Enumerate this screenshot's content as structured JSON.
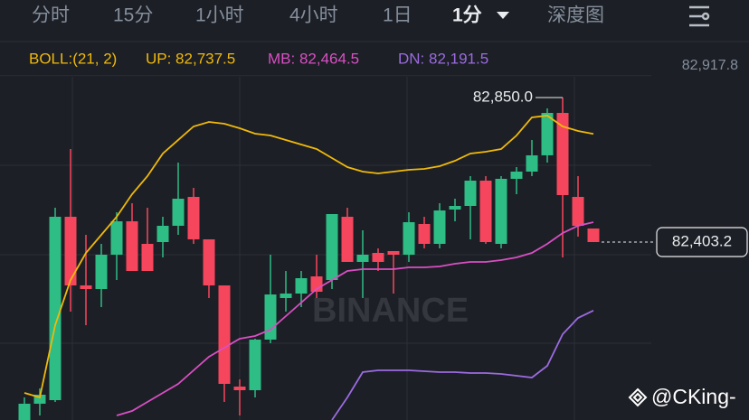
{
  "tabs": [
    "分时",
    "15分",
    "1小时",
    "4小时",
    "1日",
    "1分",
    "深度图"
  ],
  "active_tab": 5,
  "watermark": "BINANCE",
  "credit": "@CKing-",
  "chart_data": {
    "type": "candlestick",
    "indicator": "BOLL:(21, 2)",
    "ylim": [
      81853.1,
      82914.2
    ],
    "yticks": [
      {
        "value": 82917.8,
        "label": "82,917.8"
      }
    ],
    "up_color": "#2ebd85",
    "down_color": "#f6465d",
    "open": [
      81853.1,
      81903.4,
      81914.5,
      82481.4,
      82269.2,
      82258.0,
      82364.1,
      82467.4,
      82397.6,
      82403.2,
      82453.5,
      82542.8,
      82411.6,
      82269.2,
      81956.4,
      81945.2,
      82101.6,
      82230.1,
      82244.0,
      82297.1,
      82285.9,
      82481.4,
      82341.8,
      82369.7,
      82375.3,
      82364.1,
      82459.1,
      82397.6,
      82503.7,
      82514.9,
      82593.1,
      82397.6,
      82598.7,
      82621.0,
      82671.3,
      82802.5,
      82542.8,
      82445.1
    ],
    "high": [
      81922.9,
      81950.8,
      82509.3,
      82690.8,
      82425.5,
      82397.6,
      82495.4,
      82523.3,
      82509.3,
      82481.4,
      82648.9,
      82570.8,
      82411.6,
      82269.2,
      81978.7,
      82104.4,
      82364.1,
      82313.8,
      82313.8,
      82364.1,
      82489.8,
      82509.3,
      82439.5,
      82383.7,
      82375.3,
      82495.4,
      82481.4,
      82523.3,
      82537.2,
      82607.1,
      82607.1,
      82607.1,
      82635.0,
      82718.8,
      82816.5,
      82850.0,
      82607.1,
      82445.1
    ],
    "low": [
      81853.1,
      81867.0,
      81908.9,
      82188.2,
      82146.3,
      82202.1,
      82285.9,
      82313.8,
      82313.8,
      82355.7,
      82425.5,
      82397.6,
      82230.1,
      81908.9,
      81867.0,
      81922.9,
      82090.4,
      82188.2,
      82202.1,
      82230.1,
      82258.0,
      82341.8,
      82230.1,
      82313.8,
      82244.0,
      82341.8,
      82383.7,
      82383.7,
      82467.4,
      82411.6,
      82397.6,
      82383.7,
      82551.2,
      82607.1,
      82648.9,
      82355.7,
      82420.0,
      82403.2
    ],
    "close": [
      81903.4,
      81931.3,
      82481.4,
      82269.2,
      82258.0,
      82364.1,
      82467.4,
      82313.8,
      82313.8,
      82453.5,
      82537.2,
      82411.6,
      82269.2,
      81964.8,
      81945.2,
      82101.6,
      82241.2,
      82244.0,
      82291.5,
      82249.6,
      82489.8,
      82341.8,
      82364.1,
      82341.8,
      82364.1,
      82464.6,
      82397.6,
      82500.9,
      82514.9,
      82593.1,
      82403.2,
      82598.7,
      82621.0,
      82671.3,
      82802.5,
      82548.4,
      82453.5,
      82403.2
    ],
    "series": [
      {
        "name": "UP: 82,737.5",
        "color": "#f0b90b",
        "values": [
          81936.9,
          81922.9,
          82146.3,
          82285.9,
          82369.7,
          82425.5,
          82481.4,
          82551.2,
          82607.1,
          82676.9,
          82718.8,
          82760.6,
          82774.6,
          82769.0,
          82755.1,
          82738.3,
          82732.7,
          82718.8,
          82704.8,
          82690.8,
          82662.9,
          82635.0,
          82621.0,
          82615.4,
          82621.0,
          82626.6,
          82629.4,
          82637.8,
          82654.5,
          82676.9,
          82682.5,
          82690.8,
          82732.7,
          82788.6,
          82794.2,
          82760.6,
          82746.7,
          82737.5
        ]
      },
      {
        "name": "MB: 82,464.5",
        "color": "#d94fc4",
        "values": [
          null,
          null,
          null,
          null,
          null,
          null,
          81867.0,
          81881.0,
          81908.9,
          81936.9,
          81964.8,
          82006.7,
          82048.6,
          82076.5,
          82104.4,
          82112.8,
          82132.3,
          82174.2,
          82216.1,
          82258.0,
          82285.9,
          82313.8,
          82319.4,
          82319.4,
          82319.4,
          82325.0,
          82325.0,
          82327.8,
          82336.2,
          82341.8,
          82341.8,
          82347.4,
          82355.7,
          82369.7,
          82397.6,
          82431.1,
          82453.5,
          82464.5
        ]
      },
      {
        "name": "DN: 82,191.5",
        "color": "#9b6be0",
        "values": [
          null,
          null,
          null,
          null,
          null,
          null,
          null,
          null,
          null,
          null,
          null,
          null,
          null,
          null,
          null,
          null,
          null,
          null,
          null,
          null,
          81853.1,
          81922.9,
          82001.1,
          82006.7,
          82006.7,
          82006.7,
          82003.9,
          82001.1,
          82001.1,
          81998.3,
          81998.3,
          81995.5,
          81989.9,
          81984.3,
          82020.6,
          82118.4,
          82168.6,
          82191.5
        ]
      }
    ],
    "annotations": [
      {
        "value": 82850.0,
        "label": "82,850.0"
      },
      {
        "value": 82403.2,
        "label": "82,403.2"
      }
    ]
  }
}
